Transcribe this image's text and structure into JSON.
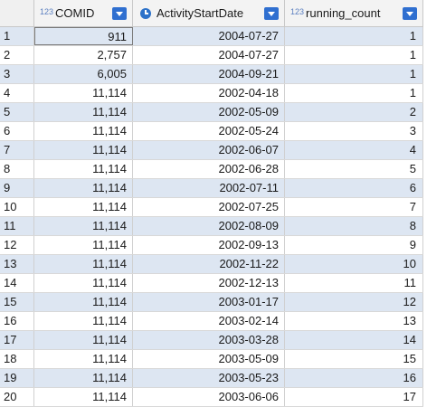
{
  "columns": [
    {
      "type_badge": "123",
      "label": "COMID"
    },
    {
      "type_badge": "clock",
      "label": "ActivityStartDate"
    },
    {
      "type_badge": "123",
      "label": "running_count"
    }
  ],
  "rows": [
    {
      "n": "1",
      "comid": "911",
      "date": "2004-07-27",
      "count": "1"
    },
    {
      "n": "2",
      "comid": "2,757",
      "date": "2004-07-27",
      "count": "1"
    },
    {
      "n": "3",
      "comid": "6,005",
      "date": "2004-09-21",
      "count": "1"
    },
    {
      "n": "4",
      "comid": "11,114",
      "date": "2002-04-18",
      "count": "1"
    },
    {
      "n": "5",
      "comid": "11,114",
      "date": "2002-05-09",
      "count": "2"
    },
    {
      "n": "6",
      "comid": "11,114",
      "date": "2002-05-24",
      "count": "3"
    },
    {
      "n": "7",
      "comid": "11,114",
      "date": "2002-06-07",
      "count": "4"
    },
    {
      "n": "8",
      "comid": "11,114",
      "date": "2002-06-28",
      "count": "5"
    },
    {
      "n": "9",
      "comid": "11,114",
      "date": "2002-07-11",
      "count": "6"
    },
    {
      "n": "10",
      "comid": "11,114",
      "date": "2002-07-25",
      "count": "7"
    },
    {
      "n": "11",
      "comid": "11,114",
      "date": "2002-08-09",
      "count": "8"
    },
    {
      "n": "12",
      "comid": "11,114",
      "date": "2002-09-13",
      "count": "9"
    },
    {
      "n": "13",
      "comid": "11,114",
      "date": "2002-11-22",
      "count": "10"
    },
    {
      "n": "14",
      "comid": "11,114",
      "date": "2002-12-13",
      "count": "11"
    },
    {
      "n": "15",
      "comid": "11,114",
      "date": "2003-01-17",
      "count": "12"
    },
    {
      "n": "16",
      "comid": "11,114",
      "date": "2003-02-14",
      "count": "13"
    },
    {
      "n": "17",
      "comid": "11,114",
      "date": "2003-03-28",
      "count": "14"
    },
    {
      "n": "18",
      "comid": "11,114",
      "date": "2003-05-09",
      "count": "15"
    },
    {
      "n": "19",
      "comid": "11,114",
      "date": "2003-05-23",
      "count": "16"
    },
    {
      "n": "20",
      "comid": "11,114",
      "date": "2003-06-06",
      "count": "17"
    }
  ],
  "colors": {
    "alt_row": "#dde6f2",
    "header_bg": "#f0f0f0",
    "sort_button": "#2f6fd0",
    "date_icon": "#2d72c9",
    "numeric_badge": "#5b7fc0"
  }
}
